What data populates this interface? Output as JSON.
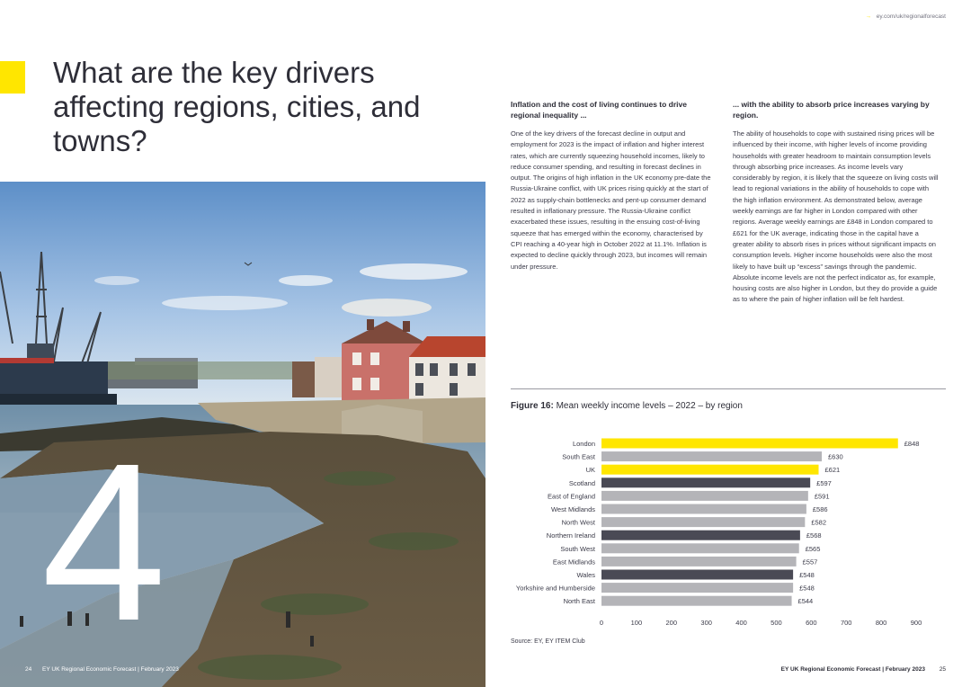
{
  "left_page": {
    "headline": "What are the key drivers affecting regions, cities, and towns?",
    "section_number": "4",
    "footer": {
      "page_number": "24",
      "publication": "EY UK Regional Economic Forecast | February 2023"
    }
  },
  "right_page": {
    "url": "ey.com/uk/regionalforecast",
    "column_1": {
      "heading": "Inflation and the cost of living continues to drive regional inequality ...",
      "body": "One of the key drivers of the forecast decline in output and employment for 2023 is the impact of inflation and higher interest rates, which are currently squeezing household incomes, likely to reduce consumer spending, and resulting in forecast declines in output. The origins of high inflation in the UK economy pre-date the Russia-Ukraine conflict, with UK prices rising quickly at the start of 2022 as supply-chain bottlenecks and pent-up consumer demand resulted in inflationary pressure. The Russia-Ukraine conflict exacerbated these issues, resulting in the ensuing cost-of-living squeeze that has emerged within the economy, characterised by CPI reaching a 40-year high in October 2022 at 11.1%. Inflation is expected to decline quickly through 2023, but incomes will remain under pressure."
    },
    "column_2": {
      "heading": "... with the ability to absorb price increases varying by region.",
      "body": "The ability of households to cope with sustained rising prices will be influenced by their income, with higher levels of income providing households with greater headroom to maintain consumption levels through absorbing price increases. As income levels vary considerably by region, it is likely that the squeeze on living costs will lead to regional variations in the ability of households to cope with the high inflation environment. As demonstrated below, average weekly earnings are far higher in London compared with other regions. Average weekly earnings are £848 in London compared to £621 for the UK average, indicating those in the capital have a greater ability to absorb rises in prices without significant impacts on consumption levels. Higher income households were also the most likely to have built up “excess” savings through the pandemic. Absolute income levels are not the perfect indicator as, for example, housing costs are also higher in London, but they do provide a guide as to where the pain of higher inflation will be felt hardest."
    },
    "figure": {
      "label": "Figure 16:",
      "title": "Mean weekly income levels – 2022 – by region",
      "source": "Source: EY, EY ITEM Club"
    },
    "footer": {
      "publication": "EY UK Regional Economic Forecast | February 2023",
      "page_number": "25"
    }
  },
  "chart_data": {
    "type": "bar",
    "orientation": "horizontal",
    "categories": [
      "London",
      "South East",
      "UK",
      "Scotland",
      "East of England",
      "West Midlands",
      "North West",
      "Northern Ireland",
      "South West",
      "East Midlands",
      "Wales",
      "Yorkshire and Humberside",
      "North East"
    ],
    "values": [
      848,
      630,
      621,
      597,
      591,
      586,
      582,
      568,
      565,
      557,
      548,
      548,
      544
    ],
    "value_labels": [
      "£848",
      "£630",
      "£621",
      "£597",
      "£591",
      "£586",
      "£582",
      "£568",
      "£565",
      "£557",
      "£548",
      "£548",
      "£544"
    ],
    "bar_colors": [
      "#ffe600",
      "#b4b4b8",
      "#ffe600",
      "#4a4a55",
      "#b4b4b8",
      "#b4b4b8",
      "#b4b4b8",
      "#4a4a55",
      "#b4b4b8",
      "#b4b4b8",
      "#4a4a55",
      "#b4b4b8",
      "#b4b4b8"
    ],
    "xlim": [
      0,
      900
    ],
    "xticks": [
      0,
      100,
      200,
      300,
      400,
      500,
      600,
      700,
      800,
      900
    ],
    "grid": false
  },
  "colors": {
    "accent_yellow": "#ffe600",
    "text_dark": "#2e2e38",
    "bar_grey": "#b4b4b8",
    "bar_dark": "#4a4a55"
  }
}
